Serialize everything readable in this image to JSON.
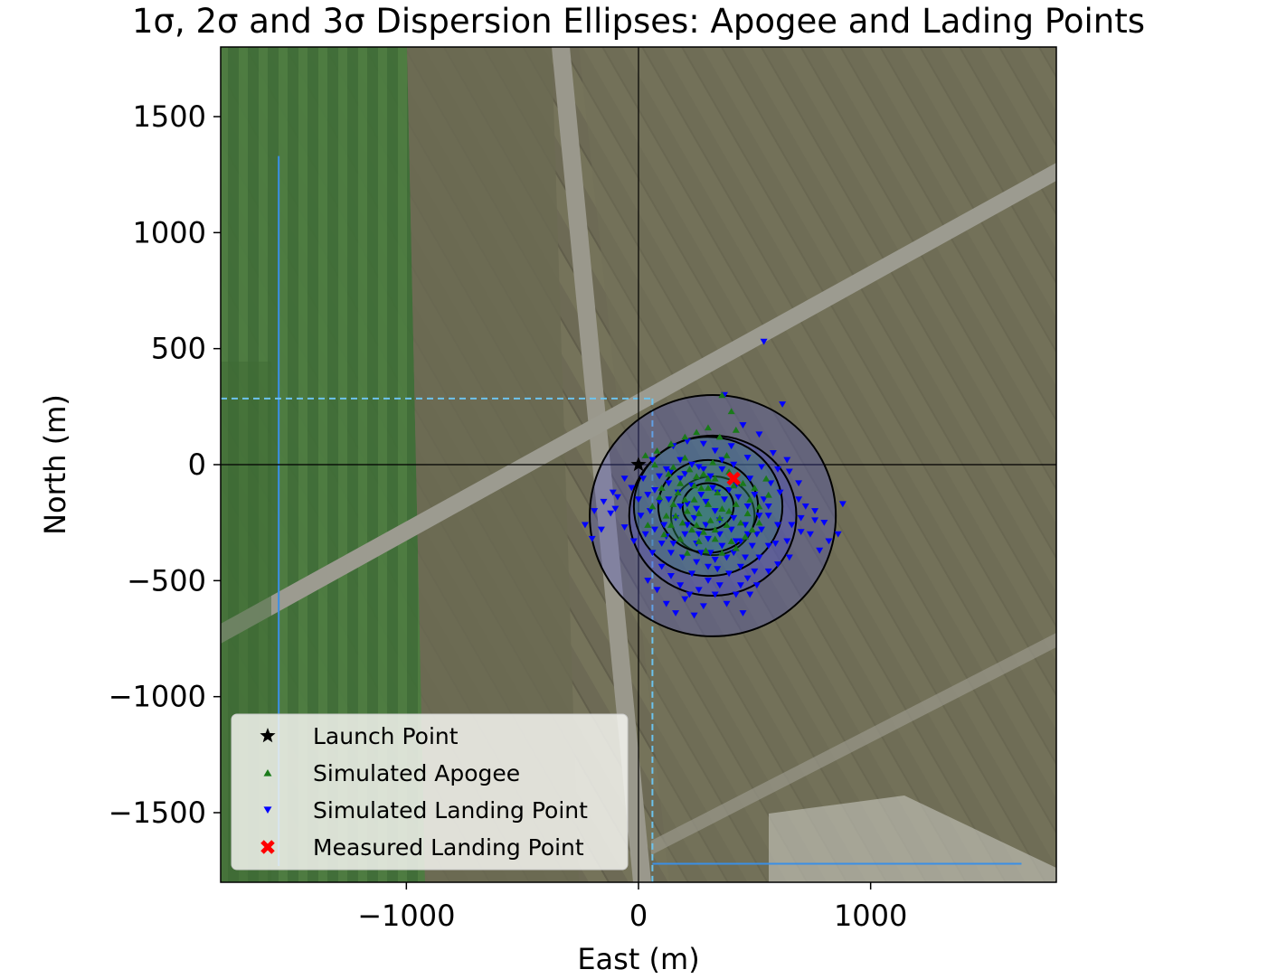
{
  "chart_data": {
    "type": "scatter",
    "title": "1σ, 2σ and 3σ Dispersion Ellipses: Apogee and Lading Points",
    "xlabel": "East (m)",
    "ylabel": "North (m)",
    "xlim": [
      -1800,
      1800
    ],
    "ylim": [
      -1800,
      1800
    ],
    "xticks": [
      -1000,
      0,
      1000
    ],
    "xtick_labels": [
      "−1000",
      "0",
      "1000"
    ],
    "yticks": [
      1500,
      1000,
      500,
      0,
      -500,
      -1000,
      -1500
    ],
    "ytick_labels": [
      "1500",
      "1000",
      "500",
      "0",
      "−500",
      "−1000",
      "−1500"
    ],
    "background": "satellite map image",
    "grid": false,
    "legend_position": "lower-left",
    "legend": [
      {
        "label": "Launch Point",
        "marker": "star",
        "color": "#000000"
      },
      {
        "label": "Simulated Apogee",
        "marker": "triangle-up",
        "color": "#1a7a1a"
      },
      {
        "label": "Simulated Landing Point",
        "marker": "triangle-down",
        "color": "#0000ff"
      },
      {
        "label": "Measured Landing Point",
        "marker": "x",
        "color": "#ff0000"
      }
    ],
    "launch_point": {
      "x": 0,
      "y": 0
    },
    "measured_landing_point": {
      "x": 410,
      "y": -60
    },
    "apogee_ellipses": [
      {
        "sigma": 1,
        "cx": 300,
        "cy": -180,
        "rx": 110,
        "ry": 100
      },
      {
        "sigma": 2,
        "cx": 300,
        "cy": -180,
        "rx": 215,
        "ry": 200
      },
      {
        "sigma": 3,
        "cx": 300,
        "cy": -180,
        "rx": 320,
        "ry": 300
      }
    ],
    "landing_ellipses": [
      {
        "sigma": 1,
        "cx": 320,
        "cy": -220,
        "rx": 180,
        "ry": 170
      },
      {
        "sigma": 2,
        "cx": 320,
        "cy": -220,
        "rx": 360,
        "ry": 345
      },
      {
        "sigma": 3,
        "cx": 320,
        "cy": -220,
        "rx": 530,
        "ry": 520
      }
    ],
    "axis_lines": {
      "x": 0,
      "y": 0
    },
    "series": [
      {
        "name": "Simulated Landing Point",
        "points": [
          [
            540,
            530
          ],
          [
            620,
            260
          ],
          [
            370,
            300
          ],
          [
            450,
            170
          ],
          [
            520,
            130
          ],
          [
            580,
            50
          ],
          [
            640,
            20
          ],
          [
            150,
            80
          ],
          [
            210,
            100
          ],
          [
            280,
            90
          ],
          [
            330,
            60
          ],
          [
            400,
            80
          ],
          [
            470,
            30
          ],
          [
            60,
            20
          ],
          [
            120,
            -20
          ],
          [
            200,
            -40
          ],
          [
            260,
            -10
          ],
          [
            310,
            -50
          ],
          [
            360,
            -20
          ],
          [
            420,
            -90
          ],
          [
            480,
            -60
          ],
          [
            530,
            -10
          ],
          [
            570,
            -80
          ],
          [
            610,
            -120
          ],
          [
            650,
            -30
          ],
          [
            690,
            -150
          ],
          [
            720,
            -180
          ],
          [
            760,
            -200
          ],
          [
            800,
            -250
          ],
          [
            860,
            -300
          ],
          [
            880,
            -170
          ],
          [
            820,
            -330
          ],
          [
            780,
            -370
          ],
          [
            700,
            -290
          ],
          [
            650,
            -400
          ],
          [
            600,
            -430
          ],
          [
            560,
            -350
          ],
          [
            510,
            -300
          ],
          [
            460,
            -260
          ],
          [
            420,
            -330
          ],
          [
            380,
            -400
          ],
          [
            340,
            -450
          ],
          [
            300,
            -500
          ],
          [
            260,
            -540
          ],
          [
            220,
            -560
          ],
          [
            180,
            -520
          ],
          [
            140,
            -480
          ],
          [
            100,
            -440
          ],
          [
            60,
            -380
          ],
          [
            30,
            -300
          ],
          [
            10,
            -220
          ],
          [
            0,
            -150
          ],
          [
            -30,
            -100
          ],
          [
            -60,
            -60
          ],
          [
            -90,
            -140
          ],
          [
            -120,
            -210
          ],
          [
            -160,
            -280
          ],
          [
            -200,
            -320
          ],
          [
            -230,
            -260
          ],
          [
            -190,
            -200
          ],
          [
            -150,
            -160
          ],
          [
            -110,
            -120
          ],
          [
            20,
            -60
          ],
          [
            70,
            -110
          ],
          [
            130,
            -150
          ],
          [
            180,
            -180
          ],
          [
            240,
            -230
          ],
          [
            290,
            -260
          ],
          [
            350,
            -300
          ],
          [
            410,
            -230
          ],
          [
            470,
            -180
          ],
          [
            520,
            -220
          ],
          [
            560,
            -180
          ],
          [
            600,
            -260
          ],
          [
            640,
            -330
          ],
          [
            560,
            -460
          ],
          [
            470,
            -490
          ],
          [
            420,
            -560
          ],
          [
            380,
            -600
          ],
          [
            330,
            -560
          ],
          [
            280,
            -610
          ],
          [
            240,
            -650
          ],
          [
            200,
            -580
          ],
          [
            160,
            -640
          ],
          [
            120,
            -600
          ],
          [
            80,
            -540
          ],
          [
            40,
            -500
          ],
          [
            150,
            -340
          ],
          [
            200,
            -300
          ],
          [
            250,
            -340
          ],
          [
            310,
            -380
          ],
          [
            360,
            -350
          ],
          [
            410,
            -380
          ],
          [
            460,
            -400
          ],
          [
            520,
            -400
          ],
          [
            330,
            -200
          ],
          [
            370,
            -150
          ],
          [
            270,
            -130
          ],
          [
            230,
            -90
          ],
          [
            180,
            -60
          ],
          [
            130,
            -80
          ],
          [
            90,
            -160
          ],
          [
            50,
            -200
          ],
          [
            110,
            -260
          ],
          [
            160,
            -230
          ],
          [
            210,
            -260
          ],
          [
            260,
            -300
          ],
          [
            300,
            -320
          ],
          [
            350,
            -240
          ],
          [
            400,
            -280
          ],
          [
            440,
            -330
          ],
          [
            490,
            -350
          ],
          [
            530,
            -280
          ],
          [
            430,
            -140
          ],
          [
            390,
            -110
          ],
          [
            340,
            -120
          ],
          [
            290,
            -160
          ],
          [
            250,
            -190
          ],
          [
            210,
            -170
          ],
          [
            170,
            -120
          ],
          [
            140,
            -30
          ],
          [
            90,
            -50
          ],
          [
            40,
            -130
          ],
          [
            450,
            -640
          ],
          [
            300,
            -440
          ],
          [
            250,
            -420
          ],
          [
            190,
            -400
          ],
          [
            140,
            -380
          ],
          [
            100,
            -340
          ],
          [
            70,
            -280
          ],
          [
            560,
            -220
          ],
          [
            590,
            -340
          ],
          [
            500,
            -460
          ],
          [
            440,
            -440
          ],
          [
            320,
            -100
          ],
          [
            280,
            -20
          ],
          [
            230,
            0
          ],
          [
            180,
            20
          ],
          [
            360,
            20
          ],
          [
            410,
            0
          ],
          [
            500,
            -130
          ],
          [
            540,
            -150
          ],
          [
            470,
            -300
          ],
          [
            120,
            -310
          ],
          [
            350,
            -520
          ],
          [
            390,
            -470
          ],
          [
            -20,
            -330
          ],
          [
            -60,
            -270
          ],
          [
            -100,
            -190
          ],
          [
            700,
            -230
          ],
          [
            740,
            -300
          ],
          [
            660,
            -260
          ],
          [
            600,
            -20
          ],
          [
            690,
            -80
          ],
          [
            760,
            -240
          ],
          [
            230,
            -470
          ],
          [
            270,
            -380
          ],
          [
            330,
            -410
          ],
          [
            440,
            -520
          ],
          [
            480,
            -560
          ],
          [
            510,
            -520
          ]
        ]
      },
      {
        "name": "Simulated Apogee",
        "points": [
          [
            360,
            300
          ],
          [
            400,
            230
          ],
          [
            420,
            150
          ],
          [
            350,
            120
          ],
          [
            300,
            160
          ],
          [
            250,
            140
          ],
          [
            200,
            120
          ],
          [
            140,
            90
          ],
          [
            80,
            60
          ],
          [
            30,
            40
          ],
          [
            0,
            10
          ],
          [
            70,
            0
          ],
          [
            150,
            -10
          ],
          [
            220,
            -20
          ],
          [
            280,
            -40
          ],
          [
            330,
            -60
          ],
          [
            390,
            -30
          ],
          [
            450,
            -80
          ],
          [
            500,
            -100
          ],
          [
            550,
            -60
          ],
          [
            100,
            -100
          ],
          [
            170,
            -120
          ],
          [
            240,
            -150
          ],
          [
            300,
            -170
          ],
          [
            360,
            -190
          ],
          [
            420,
            -170
          ],
          [
            470,
            -210
          ],
          [
            520,
            -180
          ],
          [
            560,
            -130
          ],
          [
            60,
            -180
          ],
          [
            120,
            -220
          ],
          [
            190,
            -250
          ],
          [
            250,
            -260
          ],
          [
            310,
            -240
          ],
          [
            380,
            -260
          ],
          [
            440,
            -250
          ],
          [
            490,
            -280
          ],
          [
            40,
            -260
          ],
          [
            110,
            -300
          ],
          [
            180,
            -320
          ],
          [
            260,
            -330
          ],
          [
            330,
            -320
          ],
          [
            400,
            -330
          ],
          [
            460,
            -310
          ],
          [
            210,
            -380
          ],
          [
            290,
            -370
          ],
          [
            360,
            -380
          ],
          [
            420,
            -360
          ],
          [
            250,
            -50
          ],
          [
            320,
            10
          ],
          [
            380,
            40
          ],
          [
            200,
            30
          ],
          [
            130,
            -40
          ],
          [
            90,
            -140
          ],
          [
            210,
            -200
          ],
          [
            340,
            -120
          ],
          [
            270,
            -100
          ],
          [
            150,
            -170
          ],
          [
            280,
            -290
          ],
          [
            350,
            -230
          ],
          [
            230,
            -280
          ],
          [
            180,
            -80
          ],
          [
            410,
            -90
          ],
          [
            480,
            -150
          ],
          [
            520,
            -250
          ],
          [
            140,
            -260
          ],
          [
            300,
            -100
          ],
          [
            260,
            -210
          ],
          [
            200,
            -150
          ],
          [
            330,
            -280
          ],
          [
            390,
            -200
          ],
          [
            160,
            -220
          ],
          [
            240,
            -90
          ],
          [
            300,
            -60
          ]
        ]
      }
    ]
  }
}
